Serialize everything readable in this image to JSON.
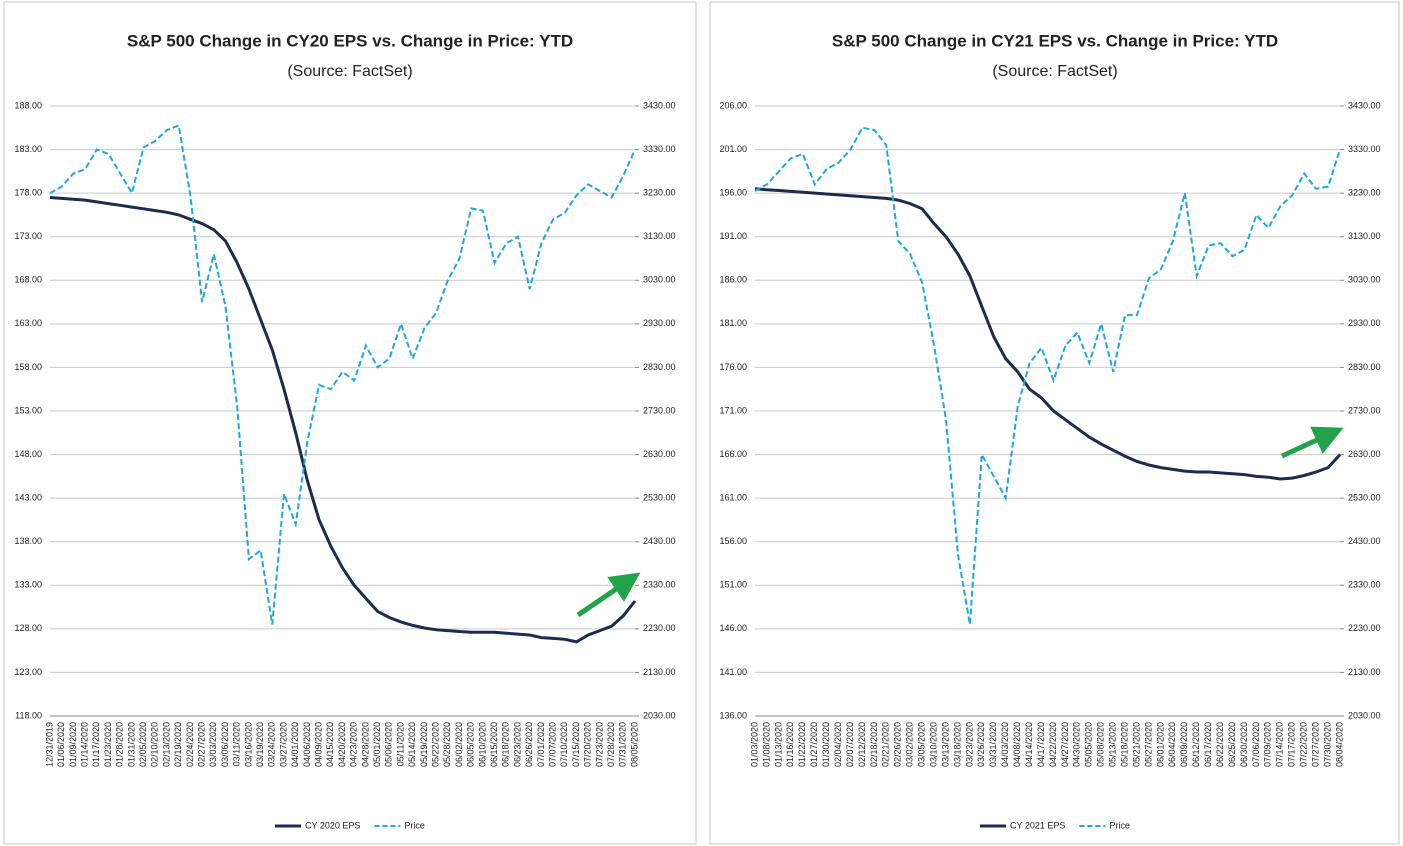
{
  "chart_data": [
    {
      "type": "line",
      "title": "S&P 500 Change in CY20 EPS vs. Change in Price: YTD",
      "subtitle": "(Source: FactSet)",
      "categories": [
        "12/31/2019",
        "01/06/2020",
        "01/09/2020",
        "01/14/2020",
        "01/17/2020",
        "01/23/2020",
        "01/28/2020",
        "01/31/2020",
        "02/05/2020",
        "02/10/2020",
        "02/13/2020",
        "02/19/2020",
        "02/24/2020",
        "02/27/2020",
        "03/03/2020",
        "03/06/2020",
        "03/11/2020",
        "03/16/2020",
        "03/19/2020",
        "03/24/2020",
        "03/27/2020",
        "04/01/2020",
        "04/06/2020",
        "04/09/2020",
        "04/15/2020",
        "04/20/2020",
        "04/23/2020",
        "04/28/2020",
        "05/01/2020",
        "05/06/2020",
        "05/11/2020",
        "05/14/2020",
        "05/19/2020",
        "05/22/2020",
        "05/28/2020",
        "06/02/2020",
        "06/05/2020",
        "06/10/2020",
        "06/15/2020",
        "06/18/2020",
        "06/23/2020",
        "06/26/2020",
        "07/01/2020",
        "07/07/2020",
        "07/10/2020",
        "07/15/2020",
        "07/20/2020",
        "07/23/2020",
        "07/28/2020",
        "07/31/2020",
        "08/05/2020"
      ],
      "series": [
        {
          "name": "CY 2020 EPS",
          "color": "#1f2b4e",
          "style": "solid",
          "values": [
            177.5,
            177.4,
            177.3,
            177.2,
            177,
            176.8,
            176.6,
            176.4,
            176.2,
            176,
            175.8,
            175.5,
            175,
            174.5,
            173.8,
            172.5,
            170,
            167,
            163.5,
            160,
            155.5,
            150.5,
            145,
            140.5,
            137.5,
            135,
            133,
            131.5,
            130,
            129.3,
            128.8,
            128.4,
            128.1,
            127.9,
            127.8,
            127.7,
            127.6,
            127.6,
            127.6,
            127.5,
            127.4,
            127.3,
            127,
            126.9,
            126.8,
            126.5,
            127.3,
            127.8,
            128.3,
            129.5,
            131.2
          ]
        },
        {
          "name": "Price",
          "color": "#1ea7e1",
          "style": "dashed",
          "axis": "y2",
          "values": [
            3230,
            3245,
            3275,
            3285,
            3330,
            3320,
            3275,
            3230,
            3335,
            3350,
            3375,
            3385,
            3225,
            2980,
            3090,
            2970,
            2740,
            2390,
            2410,
            2240,
            2540,
            2470,
            2660,
            2790,
            2780,
            2820,
            2800,
            2880,
            2830,
            2850,
            2930,
            2850,
            2920,
            2955,
            3030,
            3080,
            3195,
            3190,
            3070,
            3115,
            3130,
            3010,
            3115,
            3170,
            3185,
            3225,
            3250,
            3235,
            3220,
            3270,
            3330
          ]
        }
      ],
      "ylim": [
        118,
        188
      ],
      "yticks": [
        {
          "value": 118,
          "label": "118.00"
        },
        {
          "value": 123,
          "label": "123.00"
        },
        {
          "value": 128,
          "label": "128.00"
        },
        {
          "value": 133,
          "label": "133.00"
        },
        {
          "value": 138,
          "label": "138.00"
        },
        {
          "value": 143,
          "label": "143.00"
        },
        {
          "value": 148,
          "label": "148.00"
        },
        {
          "value": 153,
          "label": "153.00"
        },
        {
          "value": 158,
          "label": "158.00"
        },
        {
          "value": 163,
          "label": "163.00"
        },
        {
          "value": 168,
          "label": "168.00"
        },
        {
          "value": 173,
          "label": "173.00"
        },
        {
          "value": 178,
          "label": "178.00"
        },
        {
          "value": 183,
          "label": "183.00"
        },
        {
          "value": 188,
          "label": "188.00"
        }
      ],
      "y2lim": [
        2030,
        3430
      ],
      "y2ticks": [
        {
          "value": 2030,
          "label": "2030.00"
        },
        {
          "value": 2130,
          "label": "2130.00"
        },
        {
          "value": 2230,
          "label": "2230.00"
        },
        {
          "value": 2330,
          "label": "2330.00"
        },
        {
          "value": 2430,
          "label": "2430.00"
        },
        {
          "value": 2530,
          "label": "2530.00"
        },
        {
          "value": 2630,
          "label": "2630.00"
        },
        {
          "value": 2730,
          "label": "2730.00"
        },
        {
          "value": 2830,
          "label": "2830.00"
        },
        {
          "value": 2930,
          "label": "2930.00"
        },
        {
          "value": 3030,
          "label": "3030.00"
        },
        {
          "value": 3130,
          "label": "3130.00"
        },
        {
          "value": 3230,
          "label": "3230.00"
        },
        {
          "value": 3330,
          "label": "3330.00"
        },
        {
          "value": 3430,
          "label": "3430.00"
        }
      ],
      "grid": true,
      "legend": "bottom"
    },
    {
      "type": "line",
      "title": "S&P 500 Change in CY21 EPS vs. Change in Price: YTD",
      "subtitle": "(Source: FactSet)",
      "categories": [
        "01/03/2020",
        "01/08/2020",
        "01/13/2020",
        "01/16/2020",
        "01/22/2020",
        "01/27/2020",
        "01/30/2020",
        "02/04/2020",
        "02/07/2020",
        "02/12/2020",
        "02/18/2020",
        "02/21/2020",
        "02/26/2020",
        "03/02/2020",
        "03/05/2020",
        "03/10/2020",
        "03/13/2020",
        "03/18/2020",
        "03/23/2020",
        "03/26/2020",
        "03/31/2020",
        "04/03/2020",
        "04/08/2020",
        "04/14/2020",
        "04/17/2020",
        "04/22/2020",
        "04/27/2020",
        "04/30/2020",
        "05/05/2020",
        "05/08/2020",
        "05/13/2020",
        "05/18/2020",
        "05/21/2020",
        "05/27/2020",
        "06/01/2020",
        "06/04/2020",
        "06/09/2020",
        "06/12/2020",
        "06/17/2020",
        "06/22/2020",
        "06/25/2020",
        "06/30/2020",
        "07/06/2020",
        "07/09/2020",
        "07/14/2020",
        "07/17/2020",
        "07/22/2020",
        "07/27/2020",
        "07/30/2020",
        "08/04/2020"
      ],
      "series": [
        {
          "name": "CY 2021 EPS",
          "color": "#1f2b4e",
          "style": "solid",
          "values": [
            196.5,
            196.4,
            196.3,
            196.2,
            196.1,
            196,
            195.9,
            195.8,
            195.7,
            195.6,
            195.5,
            195.4,
            195.2,
            194.8,
            194.2,
            192.5,
            191,
            189,
            186.5,
            183,
            179.5,
            177,
            175.5,
            173.5,
            172.5,
            171,
            170,
            169,
            168,
            167.2,
            166.5,
            165.8,
            165.2,
            164.8,
            164.5,
            164.3,
            164.1,
            164,
            164,
            163.9,
            163.8,
            163.7,
            163.5,
            163.4,
            163.2,
            163.3,
            163.6,
            164,
            164.5,
            166
          ]
        },
        {
          "name": "Price",
          "color": "#1ea7e1",
          "style": "dashed",
          "axis": "y2",
          "values": [
            3235,
            3250,
            3280,
            3310,
            3320,
            3250,
            3285,
            3300,
            3330,
            3380,
            3375,
            3340,
            3120,
            3090,
            3025,
            2880,
            2710,
            2400,
            2240,
            2630,
            2580,
            2530,
            2740,
            2840,
            2875,
            2800,
            2880,
            2910,
            2840,
            2930,
            2820,
            2950,
            2950,
            3035,
            3055,
            3120,
            3230,
            3040,
            3110,
            3115,
            3085,
            3100,
            3180,
            3150,
            3200,
            3225,
            3275,
            3240,
            3245,
            3330
          ]
        }
      ],
      "ylim": [
        136,
        206
      ],
      "yticks": [
        {
          "value": 136,
          "label": "136.00"
        },
        {
          "value": 141,
          "label": "141.00"
        },
        {
          "value": 146,
          "label": "146.00"
        },
        {
          "value": 151,
          "label": "151.00"
        },
        {
          "value": 156,
          "label": "156.00"
        },
        {
          "value": 161,
          "label": "161.00"
        },
        {
          "value": 166,
          "label": "166.00"
        },
        {
          "value": 171,
          "label": "171.00"
        },
        {
          "value": 176,
          "label": "176.00"
        },
        {
          "value": 181,
          "label": "181.00"
        },
        {
          "value": 186,
          "label": "186.00"
        },
        {
          "value": 191,
          "label": "191.00"
        },
        {
          "value": 196,
          "label": "196.00"
        },
        {
          "value": 201,
          "label": "201.00"
        },
        {
          "value": 206,
          "label": "206.00"
        }
      ],
      "y2lim": [
        2030,
        3430
      ],
      "y2ticks": [
        {
          "value": 2030,
          "label": "2030.00"
        },
        {
          "value": 2130,
          "label": "2130.00"
        },
        {
          "value": 2230,
          "label": "2230.00"
        },
        {
          "value": 2330,
          "label": "2330.00"
        },
        {
          "value": 2430,
          "label": "2430.00"
        },
        {
          "value": 2530,
          "label": "2530.00"
        },
        {
          "value": 2630,
          "label": "2630.00"
        },
        {
          "value": 2730,
          "label": "2730.00"
        },
        {
          "value": 2830,
          "label": "2830.00"
        },
        {
          "value": 2930,
          "label": "2930.00"
        },
        {
          "value": 3030,
          "label": "3030.00"
        },
        {
          "value": 3130,
          "label": "3130.00"
        },
        {
          "value": 3230,
          "label": "3230.00"
        },
        {
          "value": 3330,
          "label": "3330.00"
        },
        {
          "value": 3430,
          "label": "3430.00"
        }
      ],
      "grid": true,
      "legend": "bottom"
    }
  ]
}
